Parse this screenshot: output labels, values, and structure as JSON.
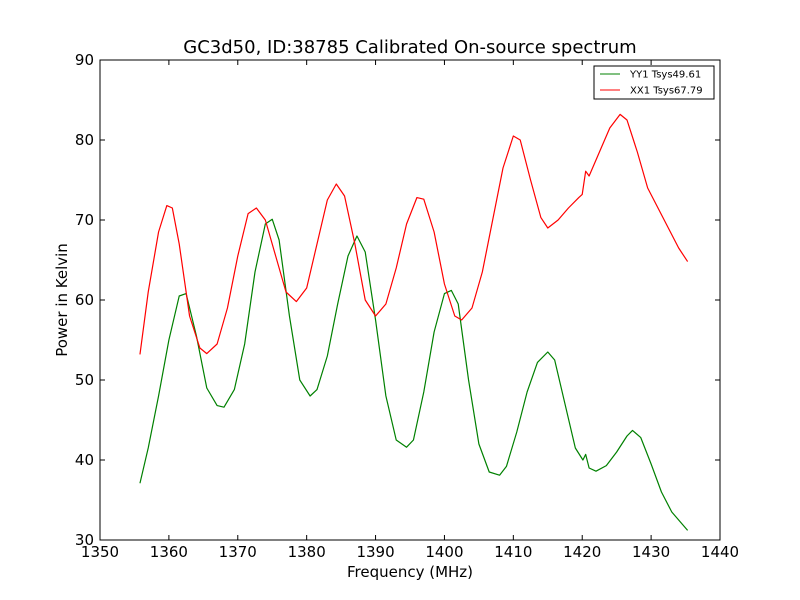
{
  "chart_data": {
    "type": "line",
    "title": "GC3d50, ID:38785 Calibrated On-source spectrum",
    "xlabel": "Frequency (MHz)",
    "ylabel": "Power in Kelvin",
    "xlim": [
      1350,
      1440
    ],
    "ylim": [
      30,
      90
    ],
    "xticks": [
      1350,
      1360,
      1370,
      1380,
      1390,
      1400,
      1410,
      1420,
      1430,
      1440
    ],
    "yticks": [
      30,
      40,
      50,
      60,
      70,
      80,
      90
    ],
    "grid": false,
    "legend_position": "top-right",
    "series": [
      {
        "name": "YY1 Tsys49.61",
        "color": "#008000",
        "x": [
          1355.8,
          1357,
          1358.5,
          1360,
          1361.5,
          1362.5,
          1364,
          1365.5,
          1367,
          1368,
          1369.5,
          1371,
          1372.5,
          1374,
          1375,
          1376,
          1377.5,
          1379,
          1380.5,
          1381.5,
          1383,
          1384.5,
          1386,
          1387.3,
          1388.5,
          1390,
          1391.5,
          1393,
          1394.5,
          1395.5,
          1397,
          1398.5,
          1400,
          1401,
          1402,
          1403.5,
          1405,
          1406.5,
          1408,
          1409,
          1410.5,
          1412,
          1413.5,
          1415,
          1416,
          1417.5,
          1419,
          1420.1,
          1420.5,
          1421,
          1422,
          1423.5,
          1425,
          1426.5,
          1427.3,
          1428.5,
          1430,
          1431.5,
          1433,
          1434.5,
          1435.3
        ],
        "values": [
          37.1,
          41.5,
          48,
          55,
          60.5,
          60.8,
          55.5,
          49,
          46.8,
          46.6,
          48.8,
          54.5,
          63.5,
          69.5,
          70.1,
          67.5,
          58,
          50,
          48,
          48.8,
          53,
          59.5,
          65.5,
          68,
          66,
          57.5,
          48,
          42.5,
          41.6,
          42.5,
          48.5,
          56,
          60.8,
          61.2,
          59.5,
          50,
          42,
          38.5,
          38.1,
          39.2,
          43.5,
          48.5,
          52.2,
          53.5,
          52.5,
          47,
          41.5,
          40,
          40.7,
          39,
          38.6,
          39.3,
          41,
          43,
          43.7,
          42.8,
          39.5,
          36,
          33.5,
          32,
          31.2
        ]
      },
      {
        "name": "XX1 Tsys67.79",
        "color": "#ff0000",
        "x": [
          1355.8,
          1357,
          1358.5,
          1359.7,
          1360.5,
          1361.5,
          1363,
          1364.5,
          1365.5,
          1367,
          1368.5,
          1370,
          1371.5,
          1372.7,
          1374,
          1375.5,
          1377,
          1378.5,
          1380,
          1381.5,
          1383,
          1384.3,
          1385.5,
          1387,
          1388.5,
          1390,
          1391.5,
          1393,
          1394.5,
          1396,
          1397,
          1398.5,
          1400,
          1401.5,
          1402.5,
          1404,
          1405.5,
          1407,
          1408.5,
          1410,
          1411,
          1412.5,
          1414,
          1415,
          1416.5,
          1418,
          1419.5,
          1420,
          1420.5,
          1421,
          1422.5,
          1424,
          1425.5,
          1426.5,
          1428,
          1429.5,
          1431,
          1432.5,
          1434,
          1435.3
        ],
        "values": [
          53.2,
          61,
          68.5,
          71.8,
          71.5,
          67,
          58,
          54,
          53.3,
          54.5,
          59,
          65.5,
          70.8,
          71.5,
          70,
          65.5,
          61,
          59.8,
          61.5,
          67,
          72.5,
          74.5,
          73,
          67,
          60,
          58,
          59.5,
          64,
          69.5,
          72.8,
          72.6,
          68.5,
          62,
          58,
          57.5,
          59,
          63.5,
          70,
          76.5,
          80.5,
          80,
          75,
          70.3,
          69,
          70,
          71.5,
          72.8,
          73.2,
          76.1,
          75.5,
          78.5,
          81.5,
          83.2,
          82.5,
          78.5,
          74,
          71.5,
          69,
          66.5,
          64.8
        ]
      }
    ]
  }
}
